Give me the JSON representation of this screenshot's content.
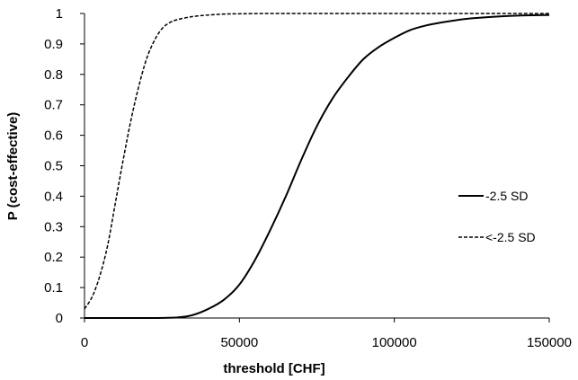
{
  "chart_data": {
    "type": "line",
    "title": "",
    "xlabel": "threshold [CHF]",
    "ylabel": "P (cost-effective)",
    "xlim": [
      0,
      150000
    ],
    "ylim": [
      0,
      1
    ],
    "xticks": [
      0,
      50000,
      100000,
      150000
    ],
    "xtick_labels": [
      "0",
      "50000",
      "100000",
      "150000"
    ],
    "yticks": [
      0,
      0.1,
      0.2,
      0.3,
      0.4,
      0.5,
      0.6,
      0.7,
      0.8,
      0.9,
      1
    ],
    "ytick_labels": [
      "0",
      "0.1",
      "0.2",
      "0.3",
      "0.4",
      "0.5",
      "0.6",
      "0.7",
      "0.8",
      "0.9",
      "1"
    ],
    "grid": false,
    "legend_position": "right",
    "series": [
      {
        "name": "-2.5 SD",
        "style": "solid",
        "color": "#000000",
        "x": [
          0,
          10000,
          20000,
          30000,
          35000,
          40000,
          45000,
          50000,
          55000,
          60000,
          65000,
          70000,
          75000,
          80000,
          85000,
          90000,
          95000,
          100000,
          105000,
          110000,
          115000,
          120000,
          125000,
          130000,
          140000,
          150000
        ],
        "y": [
          0,
          0,
          0,
          0.002,
          0.01,
          0.03,
          0.06,
          0.11,
          0.19,
          0.29,
          0.4,
          0.52,
          0.63,
          0.72,
          0.79,
          0.85,
          0.89,
          0.92,
          0.945,
          0.96,
          0.97,
          0.978,
          0.984,
          0.988,
          0.993,
          0.995
        ]
      },
      {
        "name": "<-2.5 SD",
        "style": "dashed",
        "color": "#000000",
        "x": [
          0,
          2500,
          5000,
          7500,
          10000,
          12500,
          15000,
          17500,
          20000,
          22500,
          25000,
          27500,
          30000,
          35000,
          40000,
          45000,
          50000,
          60000,
          80000,
          100000,
          150000
        ],
        "y": [
          0.03,
          0.07,
          0.14,
          0.24,
          0.38,
          0.52,
          0.65,
          0.76,
          0.85,
          0.91,
          0.95,
          0.97,
          0.98,
          0.99,
          0.995,
          0.998,
          0.999,
          1.0,
          1.0,
          1.0,
          1.0
        ]
      }
    ]
  }
}
